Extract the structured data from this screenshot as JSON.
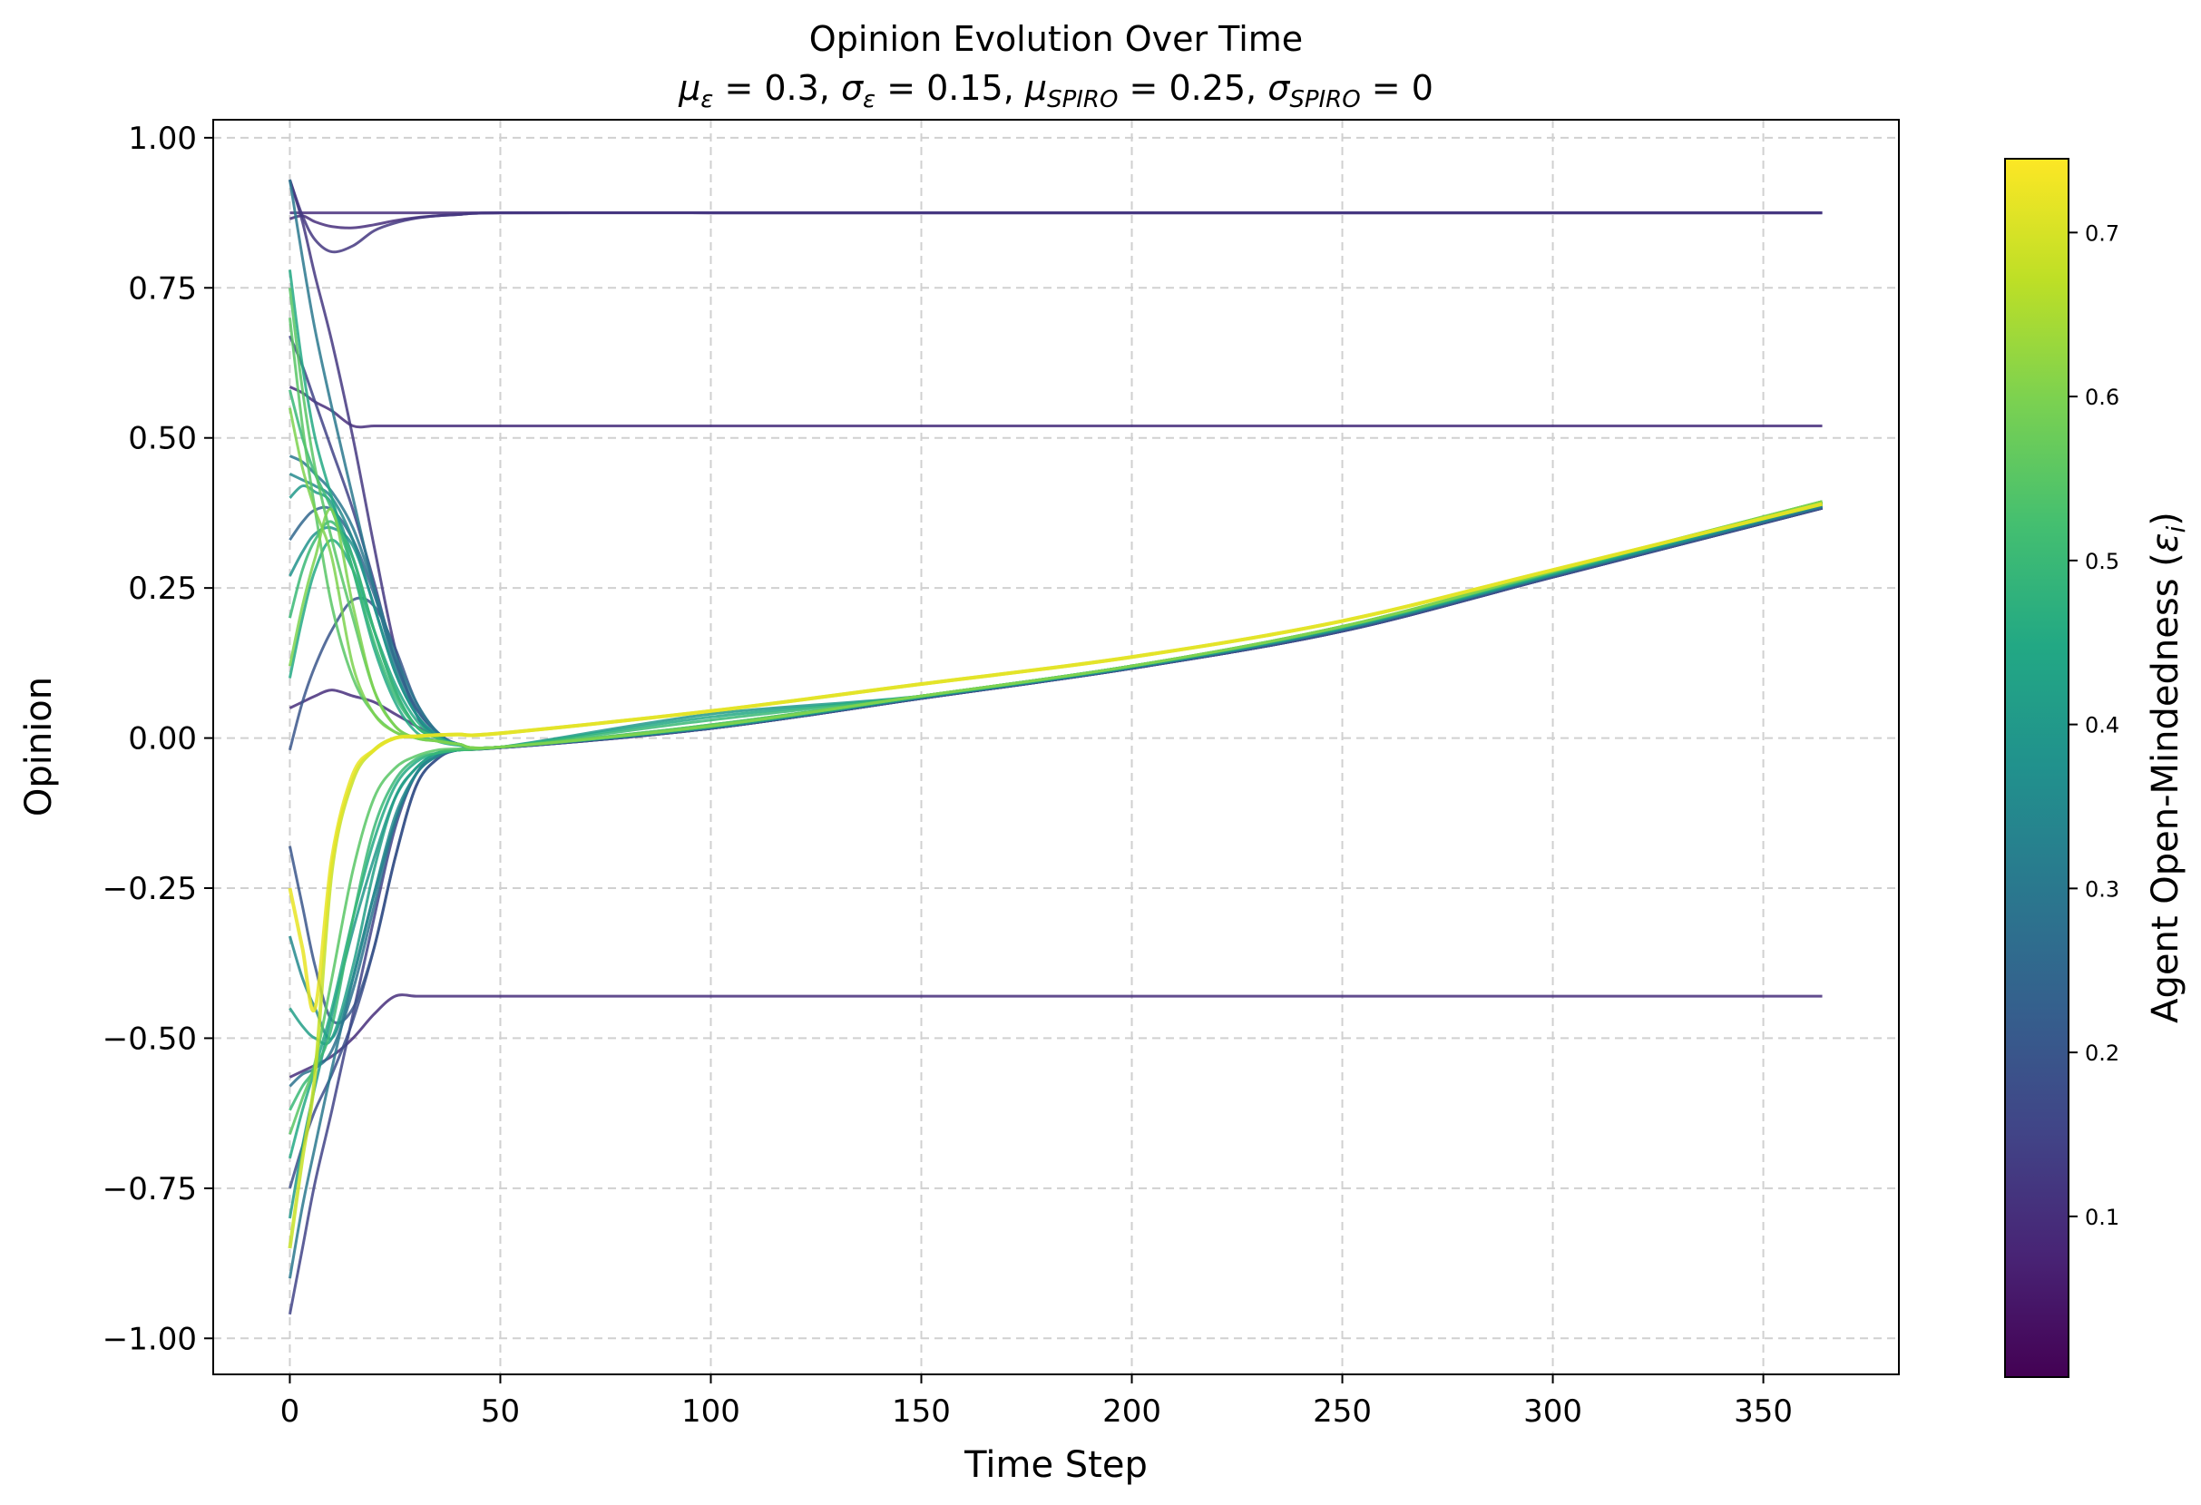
{
  "chart_data": {
    "type": "line",
    "title": "Opinion Evolution Over Time",
    "subtitle_parts": [
      {
        "sym": "μ",
        "sub": "ε",
        "text": " = 0.3, "
      },
      {
        "sym": "σ",
        "sub": "ε",
        "text": " = 0.15, "
      },
      {
        "sym": "μ",
        "sub": "SPIRO",
        "text": " = 0.25, "
      },
      {
        "sym": "σ",
        "sub": "SPIRO",
        "text": " = 0"
      }
    ],
    "xlabel": "Time Step",
    "ylabel": "Opinion",
    "xlim": [
      -18.2,
      382.2
    ],
    "ylim": [
      -1.06,
      1.03
    ],
    "xticks": [
      0,
      50,
      100,
      150,
      200,
      250,
      300,
      350
    ],
    "xtick_labels": [
      "0",
      "50",
      "100",
      "150",
      "200",
      "250",
      "300",
      "350"
    ],
    "yticks": [
      1.0,
      0.75,
      0.5,
      0.25,
      0.0,
      -0.25,
      -0.5,
      -0.75,
      -1.0
    ],
    "ytick_labels": [
      "1.00",
      "0.75",
      "0.50",
      "0.25",
      "0.00",
      "−0.25",
      "−0.50",
      "−0.75",
      "−1.00"
    ],
    "grid": true,
    "colorbar": {
      "label_main": "Agent Open-Mindedness (",
      "label_sym": "ε",
      "label_sub": "i",
      "label_end": ")",
      "colormap": "viridis",
      "range": [
        0.002,
        0.745
      ],
      "ticks": [
        0.1,
        0.2,
        0.3,
        0.4,
        0.5,
        0.6,
        0.7
      ],
      "tick_labels": [
        "0.1",
        "0.2",
        "0.3",
        "0.4",
        "0.5",
        "0.6",
        "0.7"
      ]
    },
    "x": [
      0,
      3,
      6,
      10,
      15,
      20,
      25,
      30,
      35,
      40,
      50,
      100,
      150,
      200,
      250,
      300,
      364
    ],
    "series": [
      {
        "epsilon": 0.12,
        "values": [
          0.93,
          0.86,
          0.77,
          0.66,
          0.5,
          0.32,
          0.15,
          0.04,
          0.0,
          -0.01,
          -0.016,
          0.016,
          0.066,
          0.116,
          0.178,
          0.268,
          0.383
        ]
      },
      {
        "epsilon": 0.3,
        "values": [
          0.93,
          0.8,
          0.68,
          0.55,
          0.4,
          0.25,
          0.12,
          0.04,
          0.0,
          -0.01,
          -0.015,
          0.018,
          0.068,
          0.118,
          0.182,
          0.272,
          0.386
        ]
      },
      {
        "epsilon": 0.45,
        "values": [
          0.78,
          0.62,
          0.5,
          0.4,
          0.28,
          0.15,
          0.06,
          0.01,
          -0.005,
          -0.012,
          -0.015,
          0.02,
          0.07,
          0.12,
          0.185,
          0.275,
          0.392
        ]
      },
      {
        "epsilon": 0.55,
        "values": [
          0.75,
          0.58,
          0.45,
          0.33,
          0.2,
          0.08,
          0.02,
          0.0,
          -0.005,
          -0.01,
          -0.015,
          0.022,
          0.07,
          0.12,
          0.186,
          0.277,
          0.394
        ]
      },
      {
        "epsilon": 0.15,
        "values": [
          0.67,
          0.62,
          0.56,
          0.48,
          0.38,
          0.26,
          0.13,
          0.05,
          0.01,
          -0.01,
          -0.016,
          0.016,
          0.066,
          0.116,
          0.178,
          0.268,
          0.383
        ]
      },
      {
        "epsilon": 0.5,
        "values": [
          0.58,
          0.5,
          0.44,
          0.38,
          0.28,
          0.16,
          0.07,
          0.02,
          0.0,
          -0.01,
          -0.015,
          0.03,
          0.07,
          0.12,
          0.185,
          0.276,
          0.393
        ]
      },
      {
        "epsilon": 0.6,
        "values": [
          0.55,
          0.45,
          0.38,
          0.3,
          0.12,
          0.04,
          0.01,
          0.0,
          -0.005,
          -0.01,
          -0.015,
          0.02,
          0.07,
          0.12,
          0.186,
          0.278,
          0.394
        ]
      },
      {
        "epsilon": 0.35,
        "values": [
          0.44,
          0.43,
          0.42,
          0.4,
          0.33,
          0.22,
          0.11,
          0.04,
          0.005,
          -0.01,
          -0.015,
          0.018,
          0.068,
          0.118,
          0.182,
          0.272,
          0.388
        ]
      },
      {
        "epsilon": 0.4,
        "values": [
          0.4,
          0.42,
          0.41,
          0.39,
          0.3,
          0.18,
          0.08,
          0.02,
          0.0,
          -0.01,
          -0.015,
          0.04,
          0.07,
          0.12,
          0.184,
          0.274,
          0.39
        ]
      },
      {
        "epsilon": 0.25,
        "values": [
          0.33,
          0.36,
          0.38,
          0.38,
          0.33,
          0.24,
          0.13,
          0.05,
          0.01,
          -0.01,
          -0.015,
          0.017,
          0.067,
          0.117,
          0.18,
          0.27,
          0.385
        ]
      },
      {
        "epsilon": 0.6,
        "values": [
          0.12,
          0.22,
          0.3,
          0.38,
          0.22,
          0.08,
          0.02,
          0.0,
          -0.005,
          -0.01,
          -0.015,
          0.02,
          0.07,
          0.12,
          0.186,
          0.278,
          0.394
        ]
      },
      {
        "epsilon": 0.5,
        "values": [
          0.2,
          0.28,
          0.33,
          0.36,
          0.3,
          0.18,
          0.08,
          0.02,
          0.0,
          -0.01,
          -0.015,
          0.02,
          0.07,
          0.12,
          0.185,
          0.276,
          0.393
        ]
      },
      {
        "epsilon": 0.45,
        "values": [
          0.1,
          0.2,
          0.28,
          0.33,
          0.28,
          0.18,
          0.09,
          0.03,
          0.0,
          -0.01,
          -0.015,
          0.035,
          0.07,
          0.12,
          0.185,
          0.275,
          0.392
        ]
      },
      {
        "epsilon": 0.1,
        "values": [
          0.05,
          0.06,
          0.07,
          0.08,
          0.07,
          0.06,
          0.04,
          0.02,
          0.0,
          -0.01,
          -0.016,
          0.016,
          0.066,
          0.116,
          0.178,
          0.268,
          0.383
        ]
      },
      {
        "epsilon": 0.2,
        "values": [
          -0.02,
          0.06,
          0.12,
          0.18,
          0.23,
          0.22,
          0.15,
          0.06,
          0.01,
          -0.01,
          -0.016,
          0.017,
          0.067,
          0.117,
          0.18,
          0.27,
          0.384
        ]
      },
      {
        "epsilon": 0.38,
        "values": [
          0.27,
          0.31,
          0.34,
          0.35,
          0.32,
          0.22,
          0.11,
          0.04,
          0.005,
          -0.01,
          -0.015,
          0.018,
          0.068,
          0.118,
          0.183,
          0.273,
          0.389
        ]
      },
      {
        "epsilon": 0.3,
        "values": [
          0.47,
          0.46,
          0.44,
          0.41,
          0.35,
          0.25,
          0.14,
          0.06,
          0.01,
          -0.01,
          -0.015,
          0.018,
          0.068,
          0.118,
          0.182,
          0.272,
          0.386
        ]
      },
      {
        "epsilon": 0.55,
        "values": [
          0.7,
          0.52,
          0.38,
          0.22,
          0.1,
          0.04,
          0.01,
          0.0,
          -0.005,
          -0.01,
          -0.015,
          0.022,
          0.07,
          0.12,
          0.186,
          0.277,
          0.394
        ]
      },
      {
        "epsilon": 0.15,
        "values": [
          -0.96,
          -0.85,
          -0.74,
          -0.62,
          -0.46,
          -0.3,
          -0.15,
          -0.06,
          -0.03,
          -0.02,
          -0.016,
          0.016,
          0.066,
          0.116,
          0.178,
          0.268,
          0.383
        ]
      },
      {
        "epsilon": 0.3,
        "values": [
          -0.9,
          -0.78,
          -0.68,
          -0.55,
          -0.4,
          -0.26,
          -0.14,
          -0.06,
          -0.03,
          -0.02,
          -0.015,
          0.018,
          0.068,
          0.118,
          0.182,
          0.272,
          0.386
        ]
      },
      {
        "epsilon": 0.4,
        "values": [
          -0.8,
          -0.68,
          -0.58,
          -0.46,
          -0.32,
          -0.2,
          -0.1,
          -0.05,
          -0.025,
          -0.02,
          -0.015,
          0.019,
          0.069,
          0.119,
          0.184,
          0.274,
          0.39
        ]
      },
      {
        "epsilon": 0.45,
        "values": [
          -0.7,
          -0.62,
          -0.55,
          -0.45,
          -0.3,
          -0.17,
          -0.08,
          -0.04,
          -0.025,
          -0.02,
          -0.015,
          0.02,
          0.07,
          0.12,
          0.185,
          0.275,
          0.392
        ]
      },
      {
        "epsilon": 0.2,
        "values": [
          -0.18,
          -0.28,
          -0.38,
          -0.47,
          -0.45,
          -0.35,
          -0.2,
          -0.08,
          -0.035,
          -0.02,
          -0.016,
          0.017,
          0.067,
          0.117,
          0.18,
          0.27,
          0.384
        ]
      },
      {
        "epsilon": 0.35,
        "values": [
          -0.33,
          -0.4,
          -0.45,
          -0.5,
          -0.4,
          -0.26,
          -0.13,
          -0.06,
          -0.03,
          -0.02,
          -0.015,
          0.018,
          0.068,
          0.118,
          0.182,
          0.272,
          0.388
        ]
      },
      {
        "epsilon": 0.5,
        "values": [
          -0.62,
          -0.58,
          -0.55,
          -0.48,
          -0.3,
          -0.15,
          -0.07,
          -0.035,
          -0.025,
          -0.02,
          -0.015,
          0.02,
          0.07,
          0.12,
          0.185,
          0.276,
          0.393
        ]
      },
      {
        "epsilon": 0.28,
        "values": [
          -0.58,
          -0.56,
          -0.55,
          -0.52,
          -0.42,
          -0.28,
          -0.14,
          -0.06,
          -0.03,
          -0.02,
          -0.015,
          0.018,
          0.068,
          0.118,
          0.182,
          0.272,
          0.386
        ]
      },
      {
        "epsilon": 0.42,
        "values": [
          -0.45,
          -0.48,
          -0.5,
          -0.5,
          -0.38,
          -0.22,
          -0.1,
          -0.05,
          -0.025,
          -0.02,
          -0.015,
          0.019,
          0.069,
          0.119,
          0.184,
          0.274,
          0.391
        ]
      },
      {
        "epsilon": 0.18,
        "values": [
          -0.75,
          -0.68,
          -0.62,
          -0.56,
          -0.47,
          -0.35,
          -0.2,
          -0.08,
          -0.035,
          -0.02,
          -0.016,
          0.016,
          0.066,
          0.116,
          0.178,
          0.268,
          0.383
        ]
      },
      {
        "epsilon": 0.55,
        "values": [
          -0.66,
          -0.6,
          -0.54,
          -0.4,
          -0.22,
          -0.1,
          -0.05,
          -0.03,
          -0.02,
          -0.018,
          -0.015,
          0.022,
          0.07,
          0.12,
          0.186,
          0.277,
          0.394
        ]
      },
      {
        "epsilon": 0.68,
        "values": [
          -0.85,
          -0.7,
          -0.56,
          -0.22,
          -0.07,
          -0.02,
          0.0,
          0.003,
          0.005,
          0.006,
          0.008,
          0.045,
          0.09,
          0.135,
          0.195,
          0.28,
          0.39
        ]
      },
      {
        "epsilon": 0.72,
        "values": [
          -0.25,
          -0.35,
          -0.45,
          -0.2,
          -0.06,
          -0.02,
          0.0,
          0.003,
          0.005,
          0.006,
          0.008,
          0.045,
          0.09,
          0.135,
          0.195,
          0.28,
          0.39
        ]
      },
      {
        "epsilon": 0.1,
        "values": [
          0.875,
          0.875,
          0.875,
          0.875,
          0.875,
          0.875,
          0.875,
          0.875,
          0.875,
          0.875,
          0.875,
          0.875,
          0.875,
          0.875,
          0.875,
          0.875,
          0.875
        ]
      },
      {
        "epsilon": 0.1,
        "values": [
          0.865,
          0.87,
          0.86,
          0.852,
          0.85,
          0.855,
          0.862,
          0.867,
          0.87,
          0.872,
          0.875,
          0.875,
          0.875,
          0.875,
          0.875,
          0.875,
          0.875
        ]
      },
      {
        "epsilon": 0.12,
        "values": [
          0.93,
          0.87,
          0.83,
          0.81,
          0.82,
          0.845,
          0.858,
          0.866,
          0.87,
          0.872,
          0.875,
          0.875,
          0.875,
          0.875,
          0.875,
          0.875,
          0.875
        ]
      },
      {
        "epsilon": 0.1,
        "values": [
          0.585,
          0.575,
          0.56,
          0.545,
          0.52,
          0.52,
          0.52,
          0.52,
          0.52,
          0.52,
          0.52,
          0.52,
          0.52,
          0.52,
          0.52,
          0.52,
          0.52
        ]
      },
      {
        "epsilon": 0.1,
        "values": [
          -0.565,
          -0.555,
          -0.545,
          -0.53,
          -0.5,
          -0.46,
          -0.43,
          -0.43,
          -0.43,
          -0.43,
          -0.43,
          -0.43,
          -0.43,
          -0.43,
          -0.43,
          -0.43,
          -0.43
        ]
      }
    ]
  }
}
